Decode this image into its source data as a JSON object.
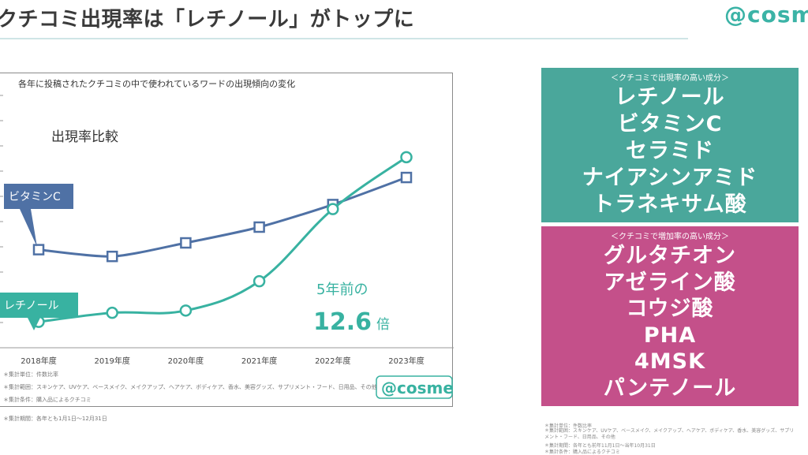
{
  "header": {
    "title": "クチコミ出現率は「レチノール」がトップに",
    "logo": "@cosme"
  },
  "chart_data": {
    "type": "line",
    "title": "各年に投稿されたクチコミの中で使われているワードの出現傾向の変化",
    "subtitle": "出現率比較",
    "categories": [
      "2018年度",
      "2019年度",
      "2020年度",
      "2021年度",
      "2022年度",
      "2023年度"
    ],
    "ylim": [
      0,
      100
    ],
    "series": [
      {
        "name": "ビタミンC",
        "values": [
          40,
          37,
          43,
          50,
          60,
          72
        ],
        "color": "#4f71a5",
        "marker": "square"
      },
      {
        "name": "レチノール",
        "values": [
          8,
          12,
          13,
          26,
          58,
          81
        ],
        "color": "#38b2a1",
        "marker": "circle"
      }
    ],
    "annotation": {
      "line1": "5年前の",
      "value": "12.6",
      "unit": "倍"
    },
    "watermark": "@cosme",
    "colors": {
      "vitc": "#4f71a5",
      "retinol": "#38b2a1"
    }
  },
  "chart_notes": [
    "＊集計単位：件数比率",
    "＊集計範囲：スキンケア、UVケア、ベースメイク、メイクアップ、ヘアケア、ボディケア、香水、美容グッズ、サプリメント・フード、日用品、その他",
    "＊集計条件：購入品によるクチコミ",
    "＊集計期間：各年とも1月1日〜12月31日"
  ],
  "panel_top": {
    "heading": "＜クチコミで出現率の高い成分＞",
    "items": [
      "レチノール",
      "ビタミンC",
      "セラミド",
      "ナイアシンアミド",
      "トラネキサム酸"
    ],
    "color": "#4aa79b"
  },
  "panel_bottom": {
    "heading": "＜クチコミで増加率の高い成分＞",
    "items": [
      "グルタチオン",
      "アゼライン酸",
      "コウジ酸",
      "PHA",
      "4MSK",
      "パンテノール"
    ],
    "color": "#c4508a"
  },
  "right_notes": [
    "＊集計単位：件数比率",
    "＊集計範囲：スキンケア、UVケア、ベースメイク、メイクアップ、ヘアケア、ボディケア、香水、美容グッズ、サプリメント・フード、日用品、その他",
    "＊集計期間：各年とも前年11月1日〜当年10月31日",
    "＊集計条件：購入品によるクチコミ"
  ]
}
